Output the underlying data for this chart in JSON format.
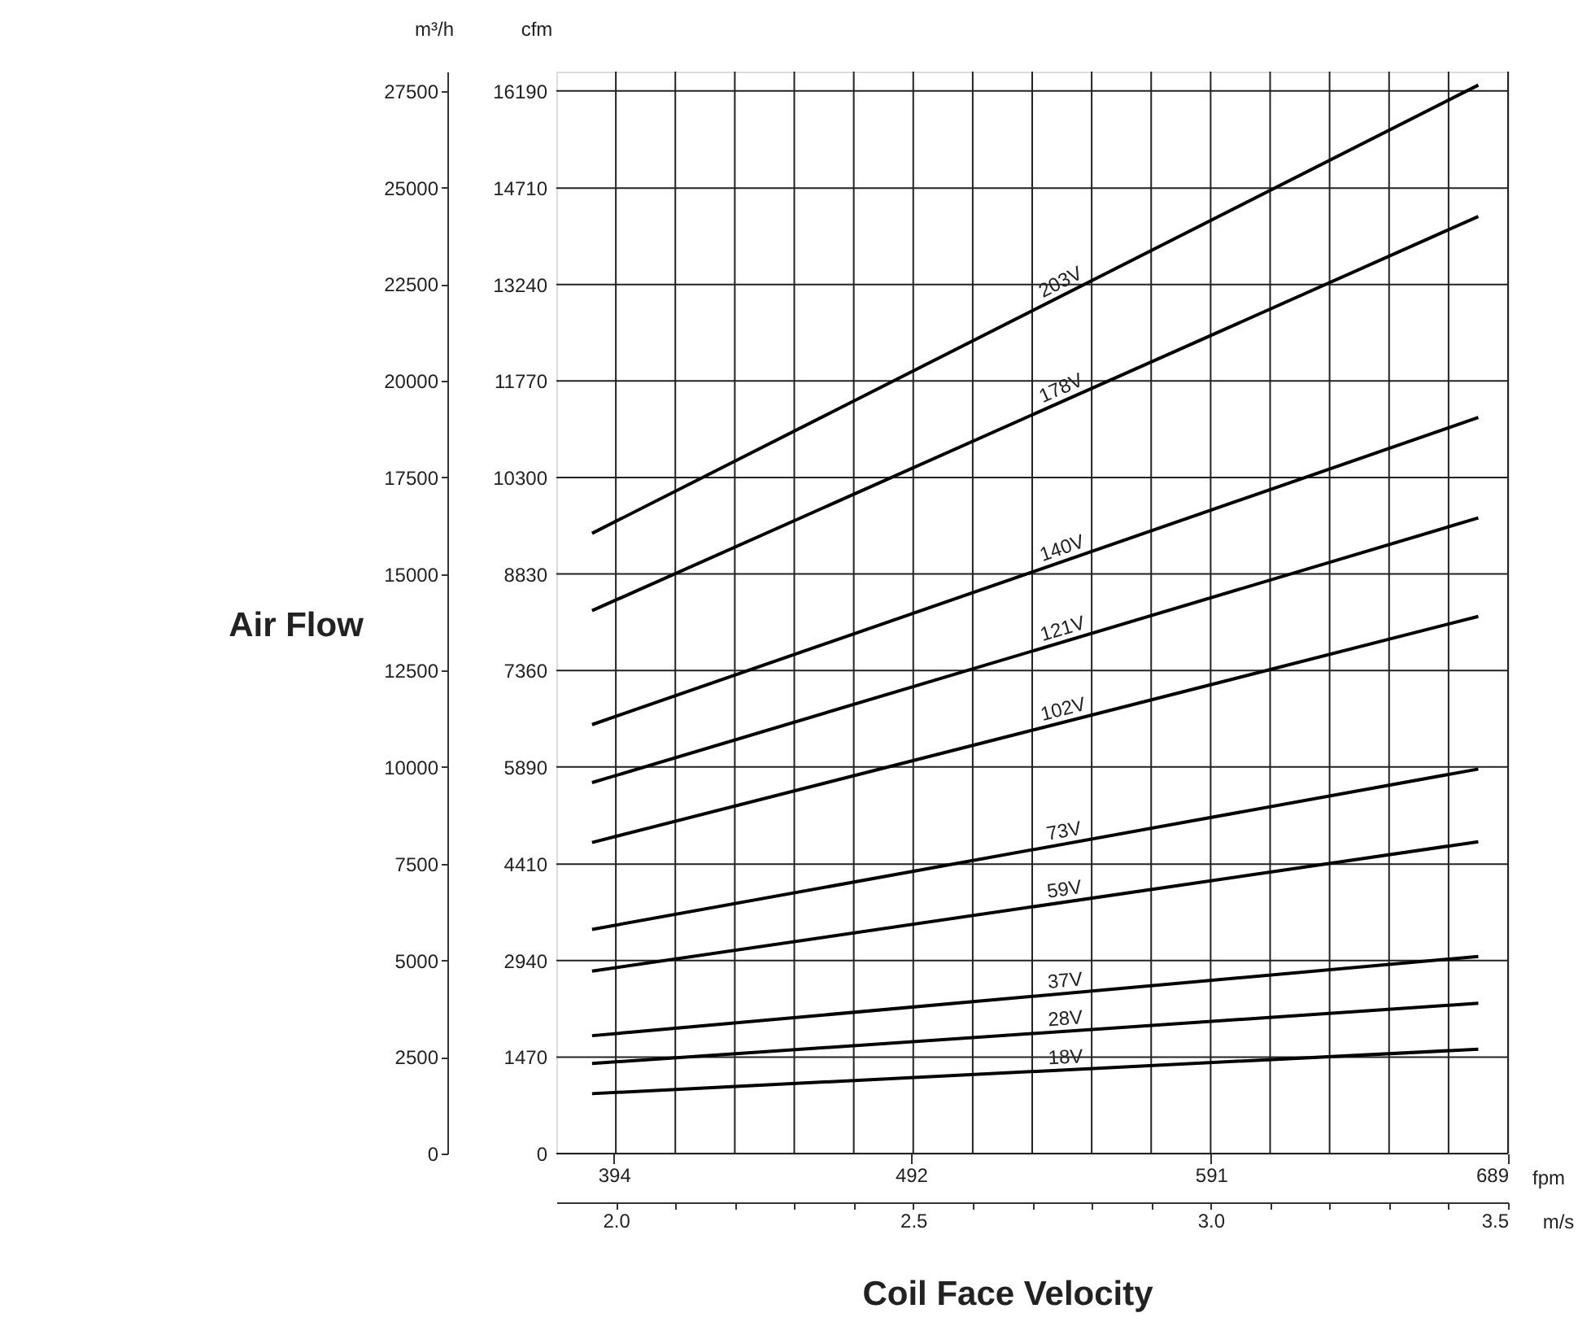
{
  "chart_data": {
    "type": "line",
    "xlabel": "Coil Face Velocity",
    "ylabel": "Air Flow",
    "annotations": [
      "m³/h",
      "cfm",
      "fpm",
      "m/s"
    ],
    "xlim": [
      1.9,
      3.5
    ],
    "xticks": [
      {
        "value": 2.0,
        "label": "2.0"
      },
      {
        "value": 2.1,
        "label": null
      },
      {
        "value": 2.2,
        "label": null
      },
      {
        "value": 2.3,
        "label": null
      },
      {
        "value": 2.4,
        "label": null
      },
      {
        "value": 2.5,
        "label": "2.5"
      },
      {
        "value": 2.6,
        "label": null
      },
      {
        "value": 2.7,
        "label": null
      },
      {
        "value": 2.8,
        "label": null
      },
      {
        "value": 2.9,
        "label": null
      },
      {
        "value": 3.0,
        "label": "3.0"
      },
      {
        "value": 3.1,
        "label": null
      },
      {
        "value": 3.2,
        "label": null
      },
      {
        "value": 3.3,
        "label": null
      },
      {
        "value": 3.4,
        "label": null
      },
      {
        "value": 3.5,
        "label": "3.5"
      }
    ],
    "x2lim": [
      375,
      689
    ],
    "x2ticks": [
      394,
      492,
      591,
      689
    ],
    "ylim": [
      0,
      28000
    ],
    "yticks": [
      0,
      2500,
      5000,
      7500,
      10000,
      12500,
      15000,
      17500,
      20000,
      22500,
      25000,
      27500
    ],
    "y2lim": [
      0,
      16484
    ],
    "y2ticks": [
      0,
      1470,
      2940,
      4410,
      5890,
      7360,
      8830,
      10300,
      11770,
      13240,
      14710,
      16190
    ],
    "grid": true,
    "legend": false,
    "line_style": "solid",
    "marker": "none",
    "x": [
      1.96,
      3.45
    ],
    "series": [
      {
        "name": "203V",
        "color": "#000000",
        "values": [
          16050,
          27650
        ]
      },
      {
        "name": "178V",
        "color": "#000000",
        "values": [
          14050,
          24250
        ]
      },
      {
        "name": "140V",
        "color": "#000000",
        "values": [
          11100,
          19050
        ]
      },
      {
        "name": "121V",
        "color": "#000000",
        "values": [
          9600,
          16450
        ]
      },
      {
        "name": "102V",
        "color": "#000000",
        "values": [
          8050,
          13900
        ]
      },
      {
        "name": "73V",
        "color": "#000000",
        "values": [
          5800,
          9950
        ]
      },
      {
        "name": "59V",
        "color": "#000000",
        "values": [
          4720,
          8070
        ]
      },
      {
        "name": "37V",
        "color": "#000000",
        "values": [
          3050,
          5100
        ]
      },
      {
        "name": "28V",
        "color": "#000000",
        "values": [
          2330,
          3890
        ]
      },
      {
        "name": "18V",
        "color": "#000000",
        "values": [
          1550,
          2700
        ]
      }
    ]
  }
}
